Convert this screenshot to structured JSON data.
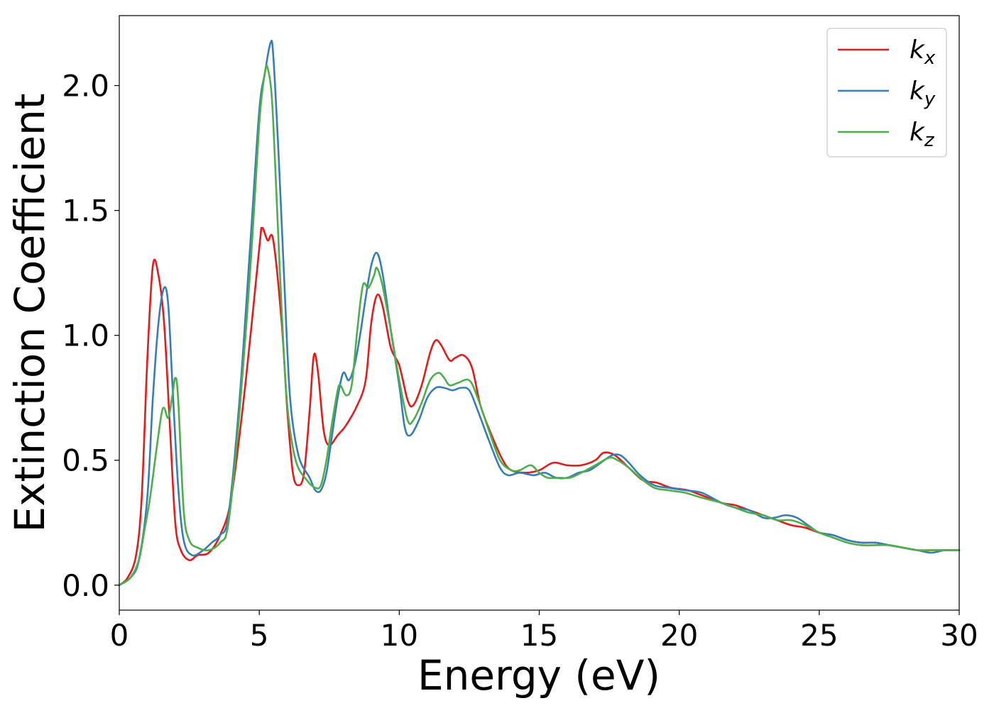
{
  "chart_data": {
    "type": "line",
    "title": "",
    "xlabel": "Energy (eV)",
    "ylabel": "Extinction Coefficient",
    "xlim": [
      0,
      30
    ],
    "ylim": [
      -0.1,
      2.28
    ],
    "xticks": [
      0,
      5,
      10,
      15,
      20,
      25,
      30
    ],
    "xtick_labels": [
      "0",
      "5",
      "10",
      "15",
      "20",
      "25",
      "30"
    ],
    "yticks": [
      0.0,
      0.5,
      1.0,
      1.5,
      2.0
    ],
    "ytick_labels": [
      "0.0",
      "0.5",
      "1.0",
      "1.5",
      "2.0"
    ],
    "grid": false,
    "legend_position": "top-right",
    "series": [
      {
        "name": "k_x",
        "label_base": "k",
        "label_sub": "x",
        "color": "#e41a1c",
        "points": [
          [
            0,
            0
          ],
          [
            0.3,
            0.03
          ],
          [
            0.6,
            0.12
          ],
          [
            0.8,
            0.35
          ],
          [
            1.0,
            0.9
          ],
          [
            1.2,
            1.28
          ],
          [
            1.4,
            1.24
          ],
          [
            1.6,
            1.05
          ],
          [
            1.8,
            0.65
          ],
          [
            2.0,
            0.25
          ],
          [
            2.2,
            0.14
          ],
          [
            2.5,
            0.1
          ],
          [
            2.8,
            0.12
          ],
          [
            3.2,
            0.13
          ],
          [
            3.6,
            0.2
          ],
          [
            4.0,
            0.35
          ],
          [
            4.5,
            0.8
          ],
          [
            5.0,
            1.35
          ],
          [
            5.1,
            1.43
          ],
          [
            5.3,
            1.38
          ],
          [
            5.5,
            1.38
          ],
          [
            5.8,
            1.05
          ],
          [
            6.0,
            0.7
          ],
          [
            6.2,
            0.45
          ],
          [
            6.4,
            0.4
          ],
          [
            6.6,
            0.45
          ],
          [
            6.8,
            0.7
          ],
          [
            6.95,
            0.92
          ],
          [
            7.1,
            0.85
          ],
          [
            7.3,
            0.62
          ],
          [
            7.5,
            0.56
          ],
          [
            7.8,
            0.6
          ],
          [
            8.1,
            0.64
          ],
          [
            8.5,
            0.72
          ],
          [
            8.8,
            0.82
          ],
          [
            9.0,
            1.05
          ],
          [
            9.2,
            1.16
          ],
          [
            9.4,
            1.12
          ],
          [
            9.7,
            0.95
          ],
          [
            10.0,
            0.88
          ],
          [
            10.3,
            0.74
          ],
          [
            10.5,
            0.72
          ],
          [
            10.8,
            0.8
          ],
          [
            11.1,
            0.93
          ],
          [
            11.3,
            0.98
          ],
          [
            11.5,
            0.96
          ],
          [
            11.8,
            0.9
          ],
          [
            12.0,
            0.91
          ],
          [
            12.3,
            0.92
          ],
          [
            12.6,
            0.87
          ],
          [
            12.9,
            0.72
          ],
          [
            13.3,
            0.6
          ],
          [
            13.7,
            0.5
          ],
          [
            14.0,
            0.46
          ],
          [
            14.5,
            0.45
          ],
          [
            15.0,
            0.46
          ],
          [
            15.5,
            0.49
          ],
          [
            16.0,
            0.48
          ],
          [
            16.5,
            0.48
          ],
          [
            17.0,
            0.5
          ],
          [
            17.3,
            0.53
          ],
          [
            17.7,
            0.52
          ],
          [
            18.2,
            0.47
          ],
          [
            18.7,
            0.42
          ],
          [
            19.2,
            0.41
          ],
          [
            19.7,
            0.39
          ],
          [
            20.3,
            0.38
          ],
          [
            20.8,
            0.36
          ],
          [
            21.5,
            0.33
          ],
          [
            22.0,
            0.32
          ],
          [
            22.5,
            0.3
          ],
          [
            23.0,
            0.28
          ],
          [
            23.5,
            0.26
          ],
          [
            24.0,
            0.24
          ],
          [
            24.5,
            0.23
          ],
          [
            25.0,
            0.21
          ],
          [
            25.5,
            0.2
          ],
          [
            26.0,
            0.18
          ],
          [
            26.5,
            0.17
          ],
          [
            27.0,
            0.17
          ],
          [
            27.5,
            0.16
          ],
          [
            28.0,
            0.15
          ],
          [
            28.5,
            0.14
          ],
          [
            29.0,
            0.14
          ],
          [
            29.5,
            0.14
          ],
          [
            30.0,
            0.14
          ]
        ]
      },
      {
        "name": "k_y",
        "label_base": "k",
        "label_sub": "y",
        "color": "#377eb8",
        "points": [
          [
            0,
            0
          ],
          [
            0.4,
            0.03
          ],
          [
            0.7,
            0.1
          ],
          [
            1.0,
            0.35
          ],
          [
            1.2,
            0.75
          ],
          [
            1.4,
            1.05
          ],
          [
            1.6,
            1.19
          ],
          [
            1.75,
            1.12
          ],
          [
            1.9,
            0.8
          ],
          [
            2.1,
            0.4
          ],
          [
            2.3,
            0.18
          ],
          [
            2.6,
            0.12
          ],
          [
            3.0,
            0.14
          ],
          [
            3.3,
            0.17
          ],
          [
            3.6,
            0.2
          ],
          [
            3.9,
            0.28
          ],
          [
            4.3,
            0.75
          ],
          [
            4.7,
            1.4
          ],
          [
            5.0,
            1.9
          ],
          [
            5.2,
            2.05
          ],
          [
            5.4,
            2.17
          ],
          [
            5.5,
            2.12
          ],
          [
            5.7,
            1.7
          ],
          [
            5.9,
            1.2
          ],
          [
            6.1,
            0.75
          ],
          [
            6.4,
            0.52
          ],
          [
            6.8,
            0.43
          ],
          [
            7.0,
            0.38
          ],
          [
            7.2,
            0.38
          ],
          [
            7.4,
            0.45
          ],
          [
            7.6,
            0.6
          ],
          [
            7.8,
            0.75
          ],
          [
            8.0,
            0.85
          ],
          [
            8.2,
            0.82
          ],
          [
            8.4,
            0.88
          ],
          [
            8.6,
            1.0
          ],
          [
            8.8,
            1.15
          ],
          [
            9.0,
            1.28
          ],
          [
            9.2,
            1.33
          ],
          [
            9.4,
            1.25
          ],
          [
            9.7,
            1.02
          ],
          [
            10.0,
            0.8
          ],
          [
            10.2,
            0.63
          ],
          [
            10.4,
            0.6
          ],
          [
            10.7,
            0.66
          ],
          [
            11.0,
            0.75
          ],
          [
            11.3,
            0.79
          ],
          [
            11.6,
            0.79
          ],
          [
            11.9,
            0.78
          ],
          [
            12.2,
            0.79
          ],
          [
            12.5,
            0.78
          ],
          [
            12.8,
            0.7
          ],
          [
            13.2,
            0.58
          ],
          [
            13.6,
            0.47
          ],
          [
            13.9,
            0.44
          ],
          [
            14.3,
            0.45
          ],
          [
            14.8,
            0.44
          ],
          [
            15.2,
            0.45
          ],
          [
            15.6,
            0.43
          ],
          [
            16.0,
            0.43
          ],
          [
            16.4,
            0.45
          ],
          [
            16.8,
            0.46
          ],
          [
            17.2,
            0.49
          ],
          [
            17.6,
            0.52
          ],
          [
            17.9,
            0.52
          ],
          [
            18.2,
            0.49
          ],
          [
            18.6,
            0.44
          ],
          [
            19.1,
            0.4
          ],
          [
            19.6,
            0.39
          ],
          [
            20.2,
            0.38
          ],
          [
            20.8,
            0.37
          ],
          [
            21.5,
            0.33
          ],
          [
            22.0,
            0.31
          ],
          [
            22.5,
            0.3
          ],
          [
            23.0,
            0.27
          ],
          [
            23.4,
            0.27
          ],
          [
            23.8,
            0.28
          ],
          [
            24.2,
            0.27
          ],
          [
            24.6,
            0.24
          ],
          [
            25.0,
            0.21
          ],
          [
            25.5,
            0.2
          ],
          [
            26.0,
            0.18
          ],
          [
            26.5,
            0.17
          ],
          [
            27.0,
            0.17
          ],
          [
            27.5,
            0.16
          ],
          [
            28.0,
            0.15
          ],
          [
            28.5,
            0.14
          ],
          [
            29.0,
            0.13
          ],
          [
            29.5,
            0.14
          ],
          [
            30.0,
            0.14
          ]
        ]
      },
      {
        "name": "k_z",
        "label_base": "k",
        "label_sub": "z",
        "color": "#4daf4a",
        "points": [
          [
            0,
            0
          ],
          [
            0.4,
            0.03
          ],
          [
            0.7,
            0.1
          ],
          [
            0.9,
            0.22
          ],
          [
            1.1,
            0.35
          ],
          [
            1.3,
            0.52
          ],
          [
            1.5,
            0.68
          ],
          [
            1.6,
            0.71
          ],
          [
            1.75,
            0.67
          ],
          [
            1.9,
            0.76
          ],
          [
            2.0,
            0.83
          ],
          [
            2.1,
            0.75
          ],
          [
            2.3,
            0.3
          ],
          [
            2.5,
            0.18
          ],
          [
            2.8,
            0.15
          ],
          [
            3.2,
            0.14
          ],
          [
            3.6,
            0.17
          ],
          [
            3.9,
            0.25
          ],
          [
            4.3,
            0.7
          ],
          [
            4.7,
            1.3
          ],
          [
            5.0,
            1.85
          ],
          [
            5.2,
            2.05
          ],
          [
            5.3,
            2.07
          ],
          [
            5.45,
            1.95
          ],
          [
            5.6,
            1.6
          ],
          [
            5.8,
            1.1
          ],
          [
            6.0,
            0.72
          ],
          [
            6.3,
            0.5
          ],
          [
            6.7,
            0.42
          ],
          [
            7.0,
            0.39
          ],
          [
            7.2,
            0.4
          ],
          [
            7.4,
            0.5
          ],
          [
            7.6,
            0.65
          ],
          [
            7.8,
            0.78
          ],
          [
            7.9,
            0.8
          ],
          [
            8.1,
            0.76
          ],
          [
            8.3,
            0.8
          ],
          [
            8.5,
            1.02
          ],
          [
            8.7,
            1.2
          ],
          [
            8.9,
            1.19
          ],
          [
            9.1,
            1.24
          ],
          [
            9.2,
            1.27
          ],
          [
            9.4,
            1.2
          ],
          [
            9.7,
            1.02
          ],
          [
            10.0,
            0.82
          ],
          [
            10.3,
            0.66
          ],
          [
            10.5,
            0.66
          ],
          [
            10.8,
            0.73
          ],
          [
            11.1,
            0.82
          ],
          [
            11.4,
            0.85
          ],
          [
            11.6,
            0.83
          ],
          [
            11.8,
            0.8
          ],
          [
            12.1,
            0.81
          ],
          [
            12.5,
            0.82
          ],
          [
            12.8,
            0.75
          ],
          [
            13.2,
            0.62
          ],
          [
            13.6,
            0.5
          ],
          [
            14.0,
            0.46
          ],
          [
            14.3,
            0.46
          ],
          [
            14.7,
            0.48
          ],
          [
            15.0,
            0.45
          ],
          [
            15.3,
            0.43
          ],
          [
            15.7,
            0.43
          ],
          [
            16.1,
            0.43
          ],
          [
            16.5,
            0.45
          ],
          [
            17.0,
            0.48
          ],
          [
            17.5,
            0.51
          ],
          [
            17.8,
            0.5
          ],
          [
            18.2,
            0.47
          ],
          [
            18.6,
            0.43
          ],
          [
            19.1,
            0.39
          ],
          [
            19.6,
            0.38
          ],
          [
            20.2,
            0.37
          ],
          [
            20.8,
            0.35
          ],
          [
            21.5,
            0.33
          ],
          [
            22.0,
            0.31
          ],
          [
            22.5,
            0.29
          ],
          [
            23.0,
            0.28
          ],
          [
            23.5,
            0.26
          ],
          [
            24.0,
            0.26
          ],
          [
            24.5,
            0.24
          ],
          [
            25.0,
            0.21
          ],
          [
            25.5,
            0.19
          ],
          [
            26.0,
            0.17
          ],
          [
            26.5,
            0.16
          ],
          [
            27.0,
            0.16
          ],
          [
            27.5,
            0.16
          ],
          [
            28.0,
            0.15
          ],
          [
            28.5,
            0.14
          ],
          [
            29.0,
            0.14
          ],
          [
            29.5,
            0.14
          ],
          [
            30.0,
            0.14
          ]
        ]
      }
    ]
  }
}
